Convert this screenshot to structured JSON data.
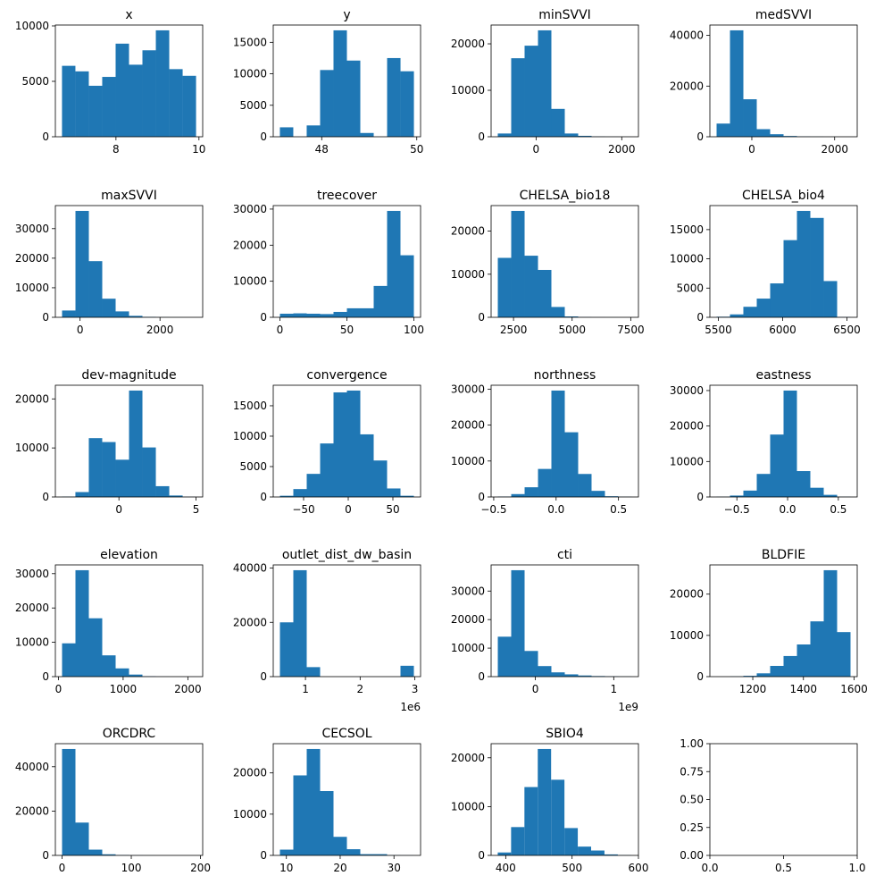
{
  "chart_data": [
    {
      "type": "histogram",
      "title": "x",
      "color": "#1f77b4",
      "bins": [
        6.7,
        7.023,
        7.346,
        7.669,
        7.992,
        8.315,
        8.638,
        8.961,
        9.284,
        9.607,
        9.93
      ],
      "counts": [
        6400,
        5900,
        4600,
        5400,
        8400,
        6500,
        7800,
        9600,
        6100,
        5500
      ],
      "xlim": [
        6.54,
        10.09
      ],
      "xticks": [
        8,
        10
      ],
      "ylim": [
        0,
        10080
      ],
      "yticks": [
        0,
        5000,
        10000
      ]
    },
    {
      "type": "histogram",
      "title": "y",
      "color": "#1f77b4",
      "bins": [
        47.12,
        47.402,
        47.684,
        47.966,
        48.248,
        48.53,
        48.812,
        49.094,
        49.376,
        49.658,
        49.94
      ],
      "counts": [
        1500,
        0,
        1800,
        10600,
        16900,
        12100,
        600,
        0,
        12500,
        10400
      ],
      "xlim": [
        46.98,
        50.08
      ],
      "xticks": [
        48,
        50
      ],
      "ylim": [
        0,
        17745
      ],
      "yticks": [
        0,
        5000,
        10000,
        15000
      ]
    },
    {
      "type": "histogram",
      "title": "minSVVI",
      "color": "#1f77b4",
      "bins": [
        -894,
        -581.2,
        -268.4,
        44.4,
        357.2,
        670,
        982.8,
        1295.6,
        1608.4,
        1921.2,
        2234
      ],
      "counts": [
        700,
        16900,
        19600,
        22900,
        6000,
        700,
        200,
        50,
        20,
        10
      ],
      "xlim": [
        -1050,
        2390
      ],
      "xticks": [
        0,
        2000
      ],
      "ylim": [
        0,
        24045
      ],
      "yticks": [
        0,
        10000,
        20000
      ]
    },
    {
      "type": "histogram",
      "title": "medSVVI",
      "color": "#1f77b4",
      "bins": [
        -851,
        -527.6,
        -204.2,
        119.2,
        442.6,
        766,
        1089.4,
        1412.8,
        1736.2,
        2059.6,
        2383
      ],
      "counts": [
        5200,
        42000,
        14800,
        3000,
        1000,
        300,
        100,
        50,
        20,
        10
      ],
      "xlim": [
        -1013,
        2545
      ],
      "xticks": [
        0,
        2000
      ],
      "ylim": [
        0,
        44100
      ],
      "yticks": [
        0,
        20000,
        40000
      ]
    },
    {
      "type": "histogram",
      "title": "maxSVVI",
      "color": "#1f77b4",
      "bins": [
        -450,
        -115,
        220,
        555,
        890,
        1225,
        1560,
        1895,
        2230,
        2565,
        2900
      ],
      "counts": [
        2300,
        36000,
        19000,
        6300,
        2000,
        500,
        150,
        50,
        20,
        10
      ],
      "xlim": [
        -618,
        3068
      ],
      "xticks": [
        0,
        2000
      ],
      "ylim": [
        0,
        37800
      ],
      "yticks": [
        0,
        10000,
        20000,
        30000
      ]
    },
    {
      "type": "histogram",
      "title": "treecover",
      "color": "#1f77b4",
      "bins": [
        0,
        10,
        20,
        30,
        40,
        50,
        60,
        70,
        80,
        90,
        100
      ],
      "counts": [
        1000,
        1100,
        1000,
        900,
        1500,
        2500,
        2500,
        8700,
        29500,
        17200
      ],
      "xlim": [
        -5,
        105
      ],
      "xticks": [
        0,
        50,
        100
      ],
      "ylim": [
        0,
        30975
      ],
      "yticks": [
        0,
        10000,
        20000,
        30000
      ]
    },
    {
      "type": "histogram",
      "title": "CHELSA_bio18",
      "color": "#1f77b4",
      "bins": [
        1830,
        2401.3,
        2972.6,
        3543.9,
        4115.2,
        4686.5,
        5257.8,
        5829.1,
        6400.4,
        6971.7,
        7543
      ],
      "counts": [
        13800,
        24700,
        14300,
        11000,
        2400,
        200,
        50,
        20,
        10,
        5
      ],
      "xlim": [
        1544,
        7829
      ],
      "xticks": [
        2500,
        5000,
        7500
      ],
      "ylim": [
        0,
        25935
      ],
      "yticks": [
        0,
        10000,
        20000
      ]
    },
    {
      "type": "histogram",
      "title": "CHELSA_bio4",
      "color": "#1f77b4",
      "bins": [
        5486,
        5590.2,
        5694.4,
        5798.6,
        5902.8,
        6007,
        6111.2,
        6215.4,
        6319.6,
        6423.8,
        6528
      ],
      "counts": [
        100,
        500,
        1800,
        3200,
        5800,
        13200,
        18200,
        17000,
        6200,
        50
      ],
      "xlim": [
        5434,
        6580
      ],
      "xticks": [
        5500,
        6000,
        6500
      ],
      "ylim": [
        0,
        19110
      ],
      "yticks": [
        0,
        5000,
        10000,
        15000
      ]
    },
    {
      "type": "histogram",
      "title": "dev-magnitude",
      "color": "#1f77b4",
      "bins": [
        -3.69,
        -2.821,
        -1.952,
        -1.083,
        -0.214,
        0.655,
        1.524,
        2.393,
        3.262,
        4.131,
        5.0
      ],
      "counts": [
        50,
        1000,
        12000,
        11200,
        7600,
        21700,
        10100,
        2200,
        300,
        20
      ],
      "xlim": [
        -4.12,
        5.43
      ],
      "xticks": [
        0,
        5
      ],
      "ylim": [
        0,
        22785
      ],
      "yticks": [
        0,
        10000,
        20000
      ]
    },
    {
      "type": "histogram",
      "title": "convergence",
      "color": "#1f77b4",
      "bins": [
        -76.5,
        -61.5,
        -46.5,
        -31.5,
        -16.5,
        -1.5,
        13.5,
        28.5,
        43.5,
        58.5,
        73.5
      ],
      "counts": [
        200,
        1300,
        3800,
        8800,
        17200,
        17500,
        10300,
        6000,
        1400,
        200
      ],
      "xlim": [
        -84,
        81
      ],
      "xticks": [
        {
          "value": -50,
          "label": "−50"
        },
        0,
        50
      ],
      "ylim": [
        0,
        18375
      ],
      "yticks": [
        0,
        5000,
        10000,
        15000
      ]
    },
    {
      "type": "histogram",
      "title": "northness",
      "color": "#1f77b4",
      "bins": [
        -0.467,
        -0.3597,
        -0.2524,
        -0.1451,
        -0.0378,
        0.0695,
        0.1768,
        0.2841,
        0.3914,
        0.4987,
        0.606
      ],
      "counts": [
        100,
        800,
        2700,
        7800,
        29600,
        18000,
        6400,
        1700,
        200,
        50
      ],
      "xlim": [
        -0.521,
        0.66
      ],
      "xticks": [
        {
          "value": -0.5,
          "label": "−0.5"
        },
        {
          "value": 0,
          "label": "0.0"
        },
        0.5
      ],
      "ylim": [
        0,
        31080
      ],
      "yticks": [
        0,
        10000,
        20000,
        30000
      ]
    },
    {
      "type": "histogram",
      "title": "eastness",
      "color": "#1f77b4",
      "bins": [
        -0.7,
        -0.568,
        -0.436,
        -0.304,
        -0.172,
        -0.04,
        0.092,
        0.224,
        0.356,
        0.488,
        0.62
      ],
      "counts": [
        50,
        400,
        1800,
        6500,
        17600,
        30000,
        7300,
        2600,
        600,
        50
      ],
      "xlim": [
        -0.766,
        0.686
      ],
      "xticks": [
        {
          "value": -0.5,
          "label": "−0.5"
        },
        {
          "value": 0,
          "label": "0.0"
        },
        0.5
      ],
      "ylim": [
        0,
        31500
      ],
      "yticks": [
        0,
        10000,
        20000,
        30000
      ]
    },
    {
      "type": "histogram",
      "title": "elevation",
      "color": "#1f77b4",
      "bins": [
        56,
        263,
        470,
        677,
        884,
        1091,
        1298,
        1505,
        1712,
        1919,
        2126
      ],
      "counts": [
        9700,
        31000,
        17000,
        6200,
        2400,
        600,
        100,
        30,
        10,
        5
      ],
      "xlim": [
        -47.5,
        2229.5
      ],
      "xticks": [
        0,
        1000,
        2000
      ],
      "ylim": [
        0,
        32550
      ],
      "yticks": [
        0,
        10000,
        20000,
        30000
      ]
    },
    {
      "type": "histogram",
      "title": "outlet_dist_dw_basin",
      "color": "#1f77b4",
      "bins": [
        0.533,
        0.778,
        1.023,
        1.268,
        1.513,
        1.758,
        2.003,
        2.248,
        2.493,
        2.738,
        2.983
      ],
      "counts": [
        20000,
        39200,
        3500,
        0,
        0,
        0,
        0,
        0,
        0,
        4000
      ],
      "xlim": [
        0.4105,
        3.1055
      ],
      "xticks": [
        1,
        2,
        3
      ],
      "x_offset_label": "1e6",
      "ylim": [
        0,
        41160
      ],
      "yticks": [
        0,
        20000,
        40000
      ]
    },
    {
      "type": "histogram",
      "title": "cti",
      "color": "#1f77b4",
      "bins": [
        -0.48,
        -0.309,
        -0.138,
        0.033,
        0.204,
        0.375,
        0.546,
        0.717,
        0.888,
        1.059,
        1.23
      ],
      "counts": [
        14000,
        37300,
        9000,
        3700,
        1500,
        800,
        400,
        200,
        100,
        50
      ],
      "xlim": [
        -0.5655,
        1.3155
      ],
      "xticks": [
        0,
        1
      ],
      "x_offset_label": "1e9",
      "ylim": [
        0,
        39165
      ],
      "yticks": [
        0,
        10000,
        20000,
        30000
      ]
    },
    {
      "type": "histogram",
      "title": "BLDFIE",
      "color": "#1f77b4",
      "bins": [
        1057,
        1109.9,
        1162.8,
        1215.7,
        1268.6,
        1321.5,
        1374.4,
        1427.3,
        1480.2,
        1533.1,
        1586
      ],
      "counts": [
        10,
        50,
        200,
        800,
        2600,
        5000,
        7800,
        13400,
        25800,
        10800
      ],
      "xlim": [
        1030.55,
        1612.45
      ],
      "xticks": [
        1200,
        1400,
        1600
      ],
      "ylim": [
        0,
        27090
      ],
      "yticks": [
        0,
        10000,
        20000
      ]
    },
    {
      "type": "histogram",
      "title": "ORCDRC",
      "color": "#1f77b4",
      "bins": [
        0,
        19.35,
        38.7,
        58.05,
        77.4,
        96.75,
        116.1,
        135.45,
        154.8,
        174.15,
        193.5
      ],
      "counts": [
        48000,
        14800,
        2600,
        500,
        150,
        50,
        20,
        10,
        5,
        5
      ],
      "xlim": [
        -9.675,
        203.175
      ],
      "xticks": [
        0,
        100,
        200
      ],
      "ylim": [
        0,
        50400
      ],
      "yticks": [
        0,
        20000,
        40000
      ]
    },
    {
      "type": "histogram",
      "title": "CECSOL",
      "color": "#1f77b4",
      "bins": [
        8.8,
        11.29,
        13.78,
        16.27,
        18.76,
        21.25,
        23.74,
        26.23,
        28.72,
        31.21,
        33.7
      ],
      "counts": [
        1400,
        19400,
        25800,
        15600,
        4500,
        1500,
        300,
        300,
        50,
        20
      ],
      "xlim": [
        7.555,
        34.945
      ],
      "xticks": [
        10,
        20,
        30
      ],
      "ylim": [
        0,
        27090
      ],
      "yticks": [
        0,
        10000,
        20000
      ]
    },
    {
      "type": "histogram",
      "title": "SBIO4",
      "color": "#1f77b4",
      "bins": [
        388,
        408.1,
        428.2,
        448.3,
        468.4,
        488.5,
        508.6,
        528.7,
        548.8,
        568.9,
        589
      ],
      "counts": [
        600,
        5800,
        14000,
        21800,
        15500,
        5600,
        1800,
        1000,
        200,
        50
      ],
      "xlim": [
        378,
        600
      ],
      "xticks": [
        400,
        500,
        600
      ],
      "ylim": [
        0,
        22890
      ],
      "yticks": [
        0,
        10000,
        20000
      ]
    },
    {
      "type": "axes",
      "xlim": [
        0,
        1
      ],
      "xticks": [
        {
          "value": 0,
          "label": "0.0"
        },
        0.5,
        {
          "value": 1,
          "label": "1.0"
        }
      ],
      "ylim": [
        0,
        1
      ],
      "yticks": [
        {
          "value": 0,
          "label": "0.00"
        },
        0.25,
        {
          "value": 0.5,
          "label": "0.50"
        },
        0.75,
        {
          "value": 1,
          "label": "1.00"
        }
      ]
    }
  ]
}
